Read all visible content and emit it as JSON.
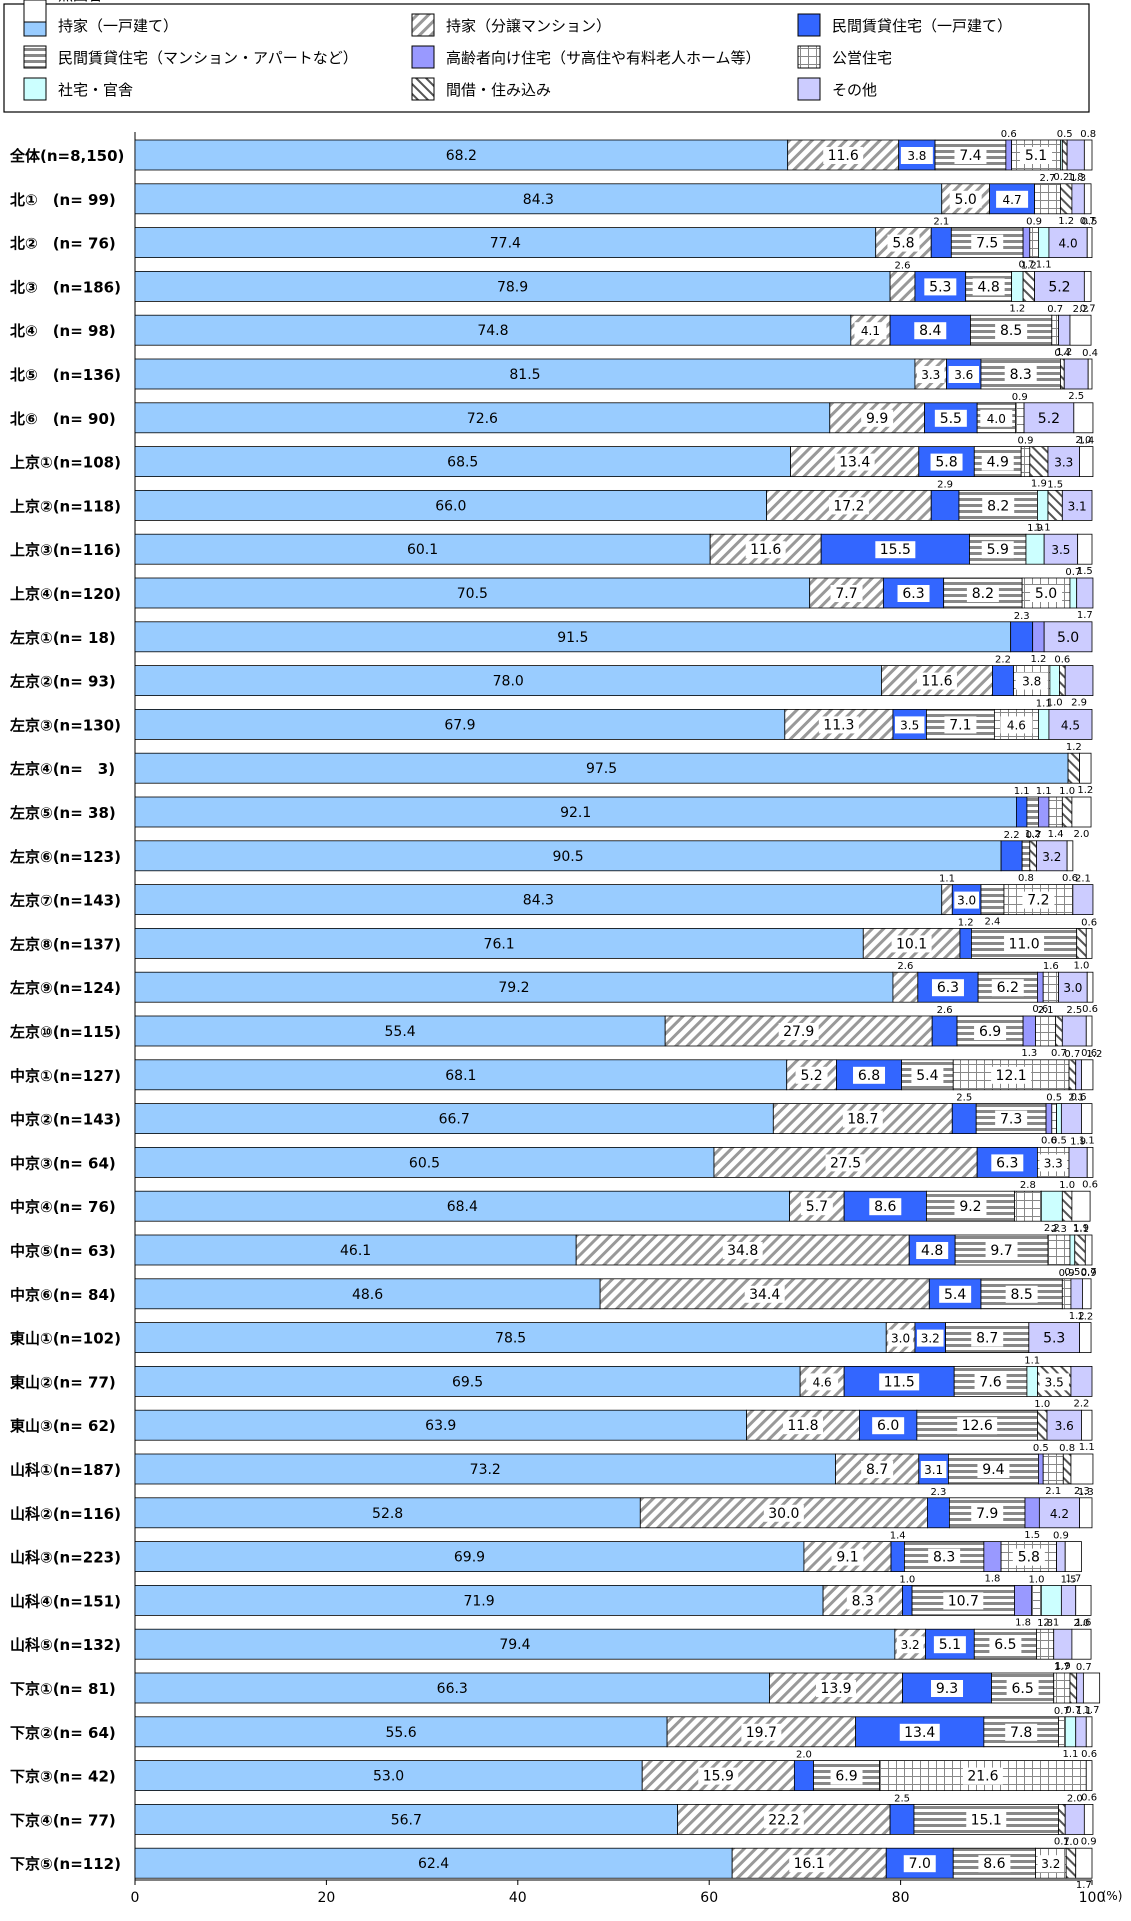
{
  "chart_data": {
    "type": "bar",
    "orientation": "horizontal",
    "stacked": true,
    "xlim": [
      0,
      100
    ],
    "xticks": [
      "0",
      "20",
      "40",
      "60",
      "80",
      "100"
    ],
    "unit": "(%)",
    "grid": false,
    "legend_position": "top",
    "series": [
      {
        "name": "持家（一戸建て）",
        "color": "#99ccff",
        "pattern": "solid"
      },
      {
        "name": "持家（分譲マンション）",
        "color": "#ffffff",
        "pattern": "diagonal"
      },
      {
        "name": "民間賃貸住宅（一戸建て）",
        "color": "#3366ff",
        "pattern": "solid"
      },
      {
        "name": "民間賃貸住宅（マンション・アパートなど）",
        "color": "#ffffff",
        "pattern": "hstripe"
      },
      {
        "name": "高齢者向け住宅（サ高住や有料老人ホーム等）",
        "color": "#9999ff",
        "pattern": "solid"
      },
      {
        "name": "公営住宅",
        "color": "#ffffff",
        "pattern": "grid"
      },
      {
        "name": "社宅・官舎",
        "color": "#ccffff",
        "pattern": "solid"
      },
      {
        "name": "間借・住み込み",
        "color": "#ffffff",
        "pattern": "backdiag"
      },
      {
        "name": "その他",
        "color": "#ccccff",
        "pattern": "solid"
      },
      {
        "name": "無回答",
        "color": "#ffffff",
        "pattern": "solid"
      }
    ],
    "categories": [
      {
        "label": "全体(n=8,150)",
        "values": [
          68.2,
          11.6,
          3.8,
          7.4,
          0.6,
          5.1,
          0.2,
          0.5,
          1.8,
          0.8
        ]
      },
      {
        "label": "北①　(n= 99)",
        "values": [
          84.3,
          5.0,
          4.7,
          0.0,
          0.0,
          2.7,
          0.0,
          1.2,
          1.3,
          0.7
        ]
      },
      {
        "label": "北②　(n= 76)",
        "values": [
          77.4,
          5.8,
          2.1,
          7.5,
          0.7,
          0.9,
          1.1,
          0.0,
          4.0,
          0.5
        ]
      },
      {
        "label": "北③　(n=186)",
        "values": [
          78.9,
          2.6,
          5.3,
          4.8,
          0.0,
          0.0,
          1.2,
          1.2,
          5.2,
          0.7
        ]
      },
      {
        "label": "北④　(n= 98)",
        "values": [
          74.8,
          4.1,
          8.4,
          8.5,
          0.0,
          0.7,
          0.0,
          0.0,
          1.2,
          2.2
        ]
      },
      {
        "label": "北⑤　(n=136)",
        "values": [
          81.5,
          3.3,
          3.6,
          8.3,
          0.0,
          0.0,
          0.0,
          0.4,
          2.5,
          0.4
        ]
      },
      {
        "label": "北⑥　(n= 90)",
        "values": [
          72.6,
          9.9,
          5.5,
          4.0,
          0.0,
          0.9,
          0.0,
          0.0,
          5.2,
          2.0
        ]
      },
      {
        "label": "上京①(n=108)",
        "values": [
          68.5,
          13.4,
          5.8,
          4.9,
          0.0,
          0.9,
          0.0,
          1.9,
          3.3,
          1.4
        ]
      },
      {
        "label": "上京②(n=118)",
        "values": [
          66.0,
          17.2,
          2.9,
          8.2,
          0.0,
          0.0,
          1.1,
          1.5,
          3.1,
          0.0
        ]
      },
      {
        "label": "上京③(n=116)",
        "values": [
          60.1,
          11.6,
          15.5,
          5.9,
          0.0,
          0.0,
          1.9,
          0.0,
          3.5,
          1.5
        ]
      },
      {
        "label": "上京④(n=120)",
        "values": [
          70.5,
          7.7,
          6.3,
          8.2,
          0.0,
          5.0,
          0.7,
          0.0,
          1.7,
          0.0
        ]
      },
      {
        "label": "左京①(n= 18)",
        "values": [
          91.5,
          0.0,
          2.3,
          0.0,
          1.2,
          0.0,
          0.0,
          0.0,
          5.0,
          0.0
        ]
      },
      {
        "label": "左京②(n= 93)",
        "values": [
          78.0,
          11.6,
          2.2,
          0.0,
          0.0,
          3.8,
          1.0,
          0.6,
          2.9,
          0.0
        ]
      },
      {
        "label": "左京③(n=130)",
        "values": [
          67.9,
          11.3,
          3.5,
          7.1,
          0.0,
          4.6,
          1.1,
          0.0,
          4.5,
          0.0
        ]
      },
      {
        "label": "左京④(n=　3)",
        "values": [
          97.5,
          0.0,
          0.0,
          0.0,
          0.0,
          0.0,
          0.0,
          1.2,
          0.0,
          1.2
        ]
      },
      {
        "label": "左京⑤(n= 38)",
        "values": [
          92.1,
          0.0,
          1.1,
          1.2,
          1.1,
          1.4,
          0.0,
          1.0,
          0.0,
          2.0
        ]
      },
      {
        "label": "左京⑥(n=123)",
        "values": [
          90.5,
          0.0,
          2.2,
          0.8,
          0.0,
          0.0,
          0.0,
          0.7,
          3.2,
          0.6
        ]
      },
      {
        "label": "左京⑦(n=143)",
        "values": [
          84.3,
          1.1,
          3.0,
          2.4,
          0.0,
          7.2,
          0.0,
          0.0,
          2.1,
          0.0
        ]
      },
      {
        "label": "左京⑧(n=137)",
        "values": [
          76.1,
          10.1,
          1.2,
          11.0,
          0.0,
          0.0,
          0.0,
          1.0,
          0.0,
          0.6
        ]
      },
      {
        "label": "左京⑨(n=124)",
        "values": [
          79.2,
          2.6,
          6.3,
          6.2,
          0.6,
          1.6,
          0.0,
          0.0,
          3.0,
          0.6
        ]
      },
      {
        "label": "左京⑩(n=115)",
        "values": [
          55.4,
          27.9,
          2.6,
          6.9,
          1.3,
          2.1,
          0.0,
          0.7,
          2.5,
          0.6
        ]
      },
      {
        "label": "中京①(n=127)",
        "values": [
          68.1,
          5.2,
          6.8,
          5.4,
          0.0,
          12.1,
          0.0,
          0.7,
          0.6,
          1.2
        ]
      },
      {
        "label": "中京②(n=143)",
        "values": [
          66.7,
          18.7,
          2.5,
          7.3,
          0.6,
          0.5,
          0.5,
          0.0,
          2.1,
          1.1
        ]
      },
      {
        "label": "中京③(n= 64)",
        "values": [
          60.5,
          27.5,
          6.3,
          0.0,
          0.0,
          3.3,
          0.0,
          0.0,
          1.9,
          0.6
        ]
      },
      {
        "label": "中京④(n= 76)",
        "values": [
          68.4,
          5.7,
          8.6,
          9.2,
          0.0,
          2.8,
          2.2,
          1.0,
          0.0,
          1.9
        ]
      },
      {
        "label": "中京⑤(n= 63)",
        "values": [
          46.1,
          34.8,
          4.8,
          9.7,
          0.0,
          2.3,
          0.5,
          1.1,
          0.0,
          0.7
        ]
      },
      {
        "label": "中京⑥(n= 84)",
        "values": [
          48.6,
          34.4,
          5.4,
          8.5,
          0.0,
          0.9,
          0.0,
          0.0,
          1.2,
          0.9
        ]
      },
      {
        "label": "東山①(n=102)",
        "values": [
          78.5,
          3.0,
          3.2,
          8.7,
          0.0,
          0.0,
          0.0,
          0.0,
          5.3,
          1.2
        ]
      },
      {
        "label": "東山②(n= 77)",
        "values": [
          69.5,
          4.6,
          11.5,
          7.6,
          0.0,
          0.0,
          1.1,
          3.5,
          2.2,
          0.0
        ]
      },
      {
        "label": "東山③(n= 62)",
        "values": [
          63.9,
          11.8,
          6.0,
          12.6,
          0.0,
          0.0,
          0.0,
          1.0,
          3.6,
          1.1
        ]
      },
      {
        "label": "山科①(n=187)",
        "values": [
          73.2,
          8.7,
          3.1,
          9.4,
          0.5,
          2.1,
          0.0,
          0.8,
          0.0,
          2.3
        ]
      },
      {
        "label": "山科②(n=116)",
        "values": [
          52.8,
          30.0,
          2.3,
          7.9,
          1.5,
          0.0,
          0.0,
          0.0,
          4.2,
          1.3
        ]
      },
      {
        "label": "山科③(n=223)",
        "values": [
          69.9,
          9.1,
          1.4,
          8.3,
          1.8,
          5.8,
          0.0,
          0.0,
          0.9,
          1.7
        ]
      },
      {
        "label": "山科④(n=151)",
        "values": [
          71.9,
          8.3,
          1.0,
          10.7,
          1.8,
          1.0,
          2.1,
          0.0,
          1.5,
          1.6
        ]
      },
      {
        "label": "山科⑤(n=132)",
        "values": [
          79.4,
          3.2,
          5.1,
          6.5,
          0.0,
          1.8,
          0.0,
          0.0,
          1.9,
          2.0
        ]
      },
      {
        "label": "下京①(n= 81)",
        "values": [
          66.3,
          13.9,
          9.3,
          6.5,
          0.0,
          1.7,
          0.0,
          0.7,
          0.7,
          1.7
        ]
      },
      {
        "label": "下京②(n= 64)",
        "values": [
          55.6,
          19.7,
          13.4,
          7.8,
          0.0,
          0.7,
          1.1,
          0.0,
          1.1,
          0.6
        ]
      },
      {
        "label": "下京③(n= 42)",
        "values": [
          53.0,
          15.9,
          2.0,
          6.9,
          0.0,
          21.6,
          0.0,
          0.0,
          0.0,
          0.6
        ]
      },
      {
        "label": "下京④(n= 77)",
        "values": [
          56.7,
          22.2,
          2.5,
          15.1,
          0.0,
          0.0,
          0.0,
          0.7,
          2.0,
          0.9
        ]
      },
      {
        "label": "下京⑤(n=112)",
        "values": [
          62.4,
          16.1,
          7.0,
          8.6,
          0.0,
          3.2,
          0.0,
          1.0,
          0.0,
          1.7
        ]
      }
    ]
  }
}
